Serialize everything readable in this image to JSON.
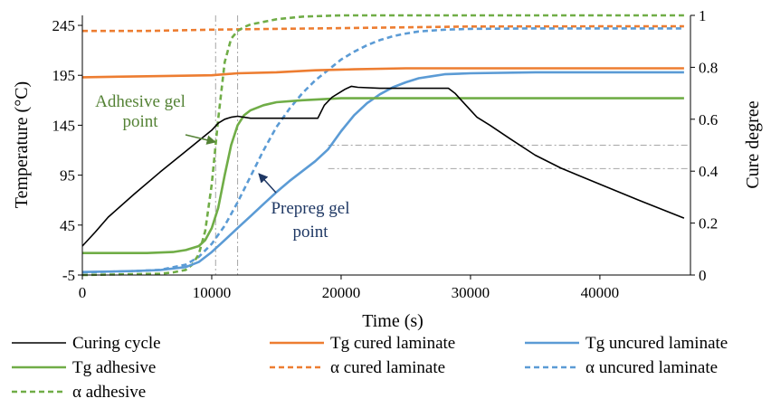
{
  "chart_data": {
    "type": "line",
    "xlabel": "Time (s)",
    "ylabel": "Temperature (°C)",
    "y2label": "Cure degree",
    "xlim": [
      0,
      47000
    ],
    "ylim": [
      -5,
      255
    ],
    "y2lim": [
      0,
      1
    ],
    "xticks": [
      "0",
      "10000",
      "20000",
      "30000",
      "40000"
    ],
    "xtick_values": [
      0,
      10000,
      20000,
      30000,
      40000
    ],
    "yticks": [
      "-5",
      "45",
      "95",
      "145",
      "195",
      "245"
    ],
    "ytick_values": [
      -5,
      45,
      95,
      145,
      195,
      245
    ],
    "y2ticks": [
      "0",
      "0.2",
      "0.4",
      "0.6",
      "0.8",
      "1"
    ],
    "y2tick_values": [
      0,
      0.2,
      0.4,
      0.6,
      0.8,
      1
    ],
    "grid": false,
    "legend_position": "bottom",
    "series": [
      {
        "name": "Curing cycle",
        "axis": "left",
        "color": "#000000",
        "dash": false,
        "x": [
          0,
          1000,
          2000,
          4000,
          6000,
          8000,
          10000,
          10500,
          11000,
          11500,
          12000,
          13000,
          15000,
          17000,
          18200,
          18700,
          19300,
          19800,
          20300,
          20800,
          21300,
          23000,
          26000,
          28300,
          28800,
          29500,
          30500,
          31500,
          33000,
          35000,
          37000,
          40000,
          43000,
          46500
        ],
        "y": [
          24,
          38,
          53,
          76,
          98,
          119,
          140,
          147,
          151,
          153,
          154,
          152,
          152,
          152,
          152,
          165,
          173,
          177,
          181,
          184,
          183,
          182,
          182,
          182,
          177,
          167,
          153,
          145,
          132,
          115,
          102,
          86,
          70,
          52
        ]
      },
      {
        "name": "Tg cured laminate",
        "axis": "left",
        "color": "#ED7D31",
        "dash": false,
        "x": [
          0,
          5000,
          10000,
          12000,
          15000,
          18000,
          21000,
          25000,
          30000,
          40000,
          46500
        ],
        "y": [
          193,
          194,
          195,
          197,
          198,
          200,
          201,
          202,
          202,
          202,
          202
        ]
      },
      {
        "name": "Tg uncured laminate",
        "axis": "left",
        "color": "#5B9BD5",
        "dash": false,
        "x": [
          0,
          4000,
          6000,
          8000,
          9000,
          10000,
          11000,
          12000,
          13000,
          14000,
          15000,
          16000,
          17000,
          18000,
          19000,
          20000,
          21000,
          22000,
          23000,
          24000,
          25000,
          26000,
          27000,
          28000,
          30000,
          35000,
          46500
        ],
        "y": [
          -2,
          -1,
          0,
          3,
          8,
          18,
          30,
          42,
          54,
          66,
          78,
          89,
          99,
          109,
          121,
          139,
          155,
          167,
          176,
          183,
          188,
          192,
          194,
          196,
          197,
          198,
          198
        ]
      },
      {
        "name": "Tg adhesive",
        "axis": "left",
        "color": "#70AD47",
        "dash": false,
        "x": [
          0,
          5000,
          7000,
          8000,
          9000,
          9500,
          10000,
          10500,
          11000,
          11500,
          12000,
          12500,
          13000,
          14000,
          15000,
          17000,
          20000,
          25000,
          30000,
          46500
        ],
        "y": [
          17,
          17,
          18,
          20,
          24,
          30,
          42,
          62,
          95,
          125,
          145,
          155,
          160,
          165,
          168,
          170,
          172,
          172,
          172,
          172
        ]
      },
      {
        "name": "α cured laminate",
        "axis": "right",
        "color": "#ED7D31",
        "dash": true,
        "x": [
          0,
          5000,
          10000,
          15000,
          20000,
          25000,
          30000,
          40000,
          46500
        ],
        "y": [
          0.94,
          0.94,
          0.945,
          0.948,
          0.951,
          0.954,
          0.957,
          0.958,
          0.958
        ]
      },
      {
        "name": "α uncured laminate",
        "axis": "right",
        "color": "#5B9BD5",
        "dash": true,
        "x": [
          0,
          4000,
          6000,
          8000,
          9000,
          10000,
          11000,
          12000,
          13000,
          14000,
          15000,
          16000,
          17000,
          18000,
          19000,
          20000,
          21000,
          22000,
          23000,
          24000,
          25000,
          26000,
          28000,
          30000,
          35000,
          46500
        ],
        "y": [
          0.01,
          0.015,
          0.02,
          0.04,
          0.07,
          0.12,
          0.19,
          0.28,
          0.38,
          0.48,
          0.57,
          0.64,
          0.7,
          0.75,
          0.79,
          0.83,
          0.86,
          0.885,
          0.905,
          0.92,
          0.93,
          0.938,
          0.945,
          0.948,
          0.95,
          0.95
        ]
      },
      {
        "name": "α adhesive",
        "axis": "right",
        "color": "#70AD47",
        "dash": true,
        "x": [
          0,
          6000,
          7000,
          8000,
          8500,
          9000,
          9500,
          10000,
          10500,
          11000,
          11500,
          12000,
          12500,
          13000,
          14000,
          15000,
          17000,
          20000,
          25000,
          30000,
          46500
        ],
        "y": [
          0.0,
          0.005,
          0.01,
          0.02,
          0.04,
          0.08,
          0.17,
          0.35,
          0.6,
          0.82,
          0.91,
          0.94,
          0.955,
          0.965,
          0.975,
          0.985,
          0.995,
          1.0,
          1.0,
          1.0,
          1.0
        ]
      }
    ],
    "annotations": [
      {
        "label_lines": [
          "Adhesive gel",
          "point"
        ],
        "color": "#548235"
      },
      {
        "label_lines": [
          "Prepreg gel",
          "point"
        ],
        "color": "#1F3864"
      }
    ],
    "reference_lines": {
      "vertical_x": [
        10300,
        12000
      ],
      "horizontal_y2": [
        0.5,
        0.41
      ]
    }
  }
}
